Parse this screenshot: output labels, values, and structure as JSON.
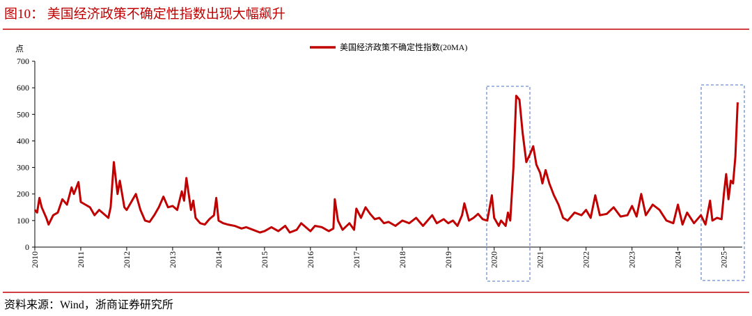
{
  "chart_data": {
    "type": "line",
    "title": "图10：  美国经济政策不确定性指数出现大幅飙升",
    "y_unit": "点",
    "source": "资料来源：Wind，浙商证券研究所",
    "xlim": [
      2010,
      2025.4
    ],
    "xticks": [
      2010,
      2011,
      2012,
      2013,
      2014,
      2015,
      2016,
      2017,
      2018,
      2019,
      2020,
      2021,
      2022,
      2023,
      2024,
      2025
    ],
    "ylim": [
      0,
      700
    ],
    "yticks": [
      0,
      100,
      200,
      300,
      400,
      500,
      600,
      700
    ],
    "series": [
      {
        "name": "美国经济政策不确定性指数(20MA)",
        "color": "#c00000",
        "x": [
          2010.0,
          2010.05,
          2010.1,
          2010.15,
          2010.25,
          2010.3,
          2010.4,
          2010.5,
          2010.6,
          2010.7,
          2010.8,
          2010.85,
          2010.95,
          2011.0,
          2011.1,
          2011.2,
          2011.3,
          2011.4,
          2011.5,
          2011.6,
          2011.65,
          2011.72,
          2011.8,
          2011.85,
          2011.95,
          2012.0,
          2012.1,
          2012.2,
          2012.3,
          2012.4,
          2012.5,
          2012.6,
          2012.7,
          2012.8,
          2012.9,
          2013.0,
          2013.1,
          2013.2,
          2013.25,
          2013.3,
          2013.4,
          2013.45,
          2013.5,
          2013.6,
          2013.7,
          2013.8,
          2013.9,
          2013.95,
          2014.0,
          2014.1,
          2014.2,
          2014.35,
          2014.5,
          2014.6,
          2014.75,
          2014.9,
          2015.0,
          2015.15,
          2015.3,
          2015.45,
          2015.55,
          2015.7,
          2015.8,
          2015.9,
          2016.0,
          2016.1,
          2016.25,
          2016.4,
          2016.5,
          2016.53,
          2016.6,
          2016.7,
          2016.85,
          2016.95,
          2017.0,
          2017.1,
          2017.2,
          2017.3,
          2017.4,
          2017.5,
          2017.6,
          2017.7,
          2017.85,
          2018.0,
          2018.15,
          2018.3,
          2018.45,
          2018.55,
          2018.65,
          2018.75,
          2018.9,
          2019.0,
          2019.1,
          2019.2,
          2019.3,
          2019.35,
          2019.45,
          2019.55,
          2019.65,
          2019.75,
          2019.85,
          2019.95,
          2020.0,
          2020.1,
          2020.15,
          2020.25,
          2020.3,
          2020.35,
          2020.42,
          2020.48,
          2020.55,
          2020.62,
          2020.7,
          2020.78,
          2020.85,
          2020.92,
          2021.0,
          2021.05,
          2021.12,
          2021.2,
          2021.3,
          2021.4,
          2021.5,
          2021.6,
          2021.75,
          2021.9,
          2022.0,
          2022.1,
          2022.2,
          2022.3,
          2022.45,
          2022.6,
          2022.75,
          2022.9,
          2023.0,
          2023.1,
          2023.2,
          2023.3,
          2023.45,
          2023.6,
          2023.75,
          2023.9,
          2024.0,
          2024.1,
          2024.2,
          2024.35,
          2024.5,
          2024.6,
          2024.7,
          2024.75,
          2024.85,
          2024.95,
          2025.0,
          2025.05,
          2025.1,
          2025.15,
          2025.2,
          2025.25,
          2025.3
        ],
        "values": [
          140,
          130,
          185,
          150,
          110,
          85,
          120,
          130,
          180,
          160,
          225,
          200,
          245,
          170,
          160,
          150,
          120,
          140,
          125,
          110,
          150,
          320,
          200,
          250,
          150,
          140,
          170,
          200,
          140,
          100,
          95,
          120,
          150,
          190,
          150,
          155,
          140,
          210,
          175,
          260,
          140,
          175,
          110,
          90,
          85,
          105,
          120,
          185,
          100,
          90,
          85,
          80,
          70,
          75,
          65,
          55,
          60,
          75,
          60,
          80,
          55,
          65,
          90,
          75,
          60,
          80,
          75,
          60,
          70,
          180,
          100,
          65,
          90,
          65,
          145,
          110,
          150,
          125,
          105,
          110,
          90,
          95,
          80,
          100,
          90,
          110,
          80,
          100,
          120,
          90,
          105,
          90,
          100,
          80,
          120,
          165,
          100,
          110,
          125,
          105,
          100,
          195,
          110,
          80,
          100,
          80,
          130,
          100,
          300,
          570,
          555,
          430,
          320,
          350,
          380,
          310,
          280,
          240,
          290,
          240,
          195,
          160,
          110,
          100,
          130,
          120,
          140,
          110,
          195,
          120,
          125,
          150,
          115,
          120,
          155,
          115,
          200,
          120,
          160,
          140,
          100,
          90,
          160,
          85,
          130,
          90,
          120,
          85,
          175,
          100,
          110,
          105,
          200,
          275,
          180,
          250,
          240,
          340,
          545
        ]
      }
    ]
  }
}
